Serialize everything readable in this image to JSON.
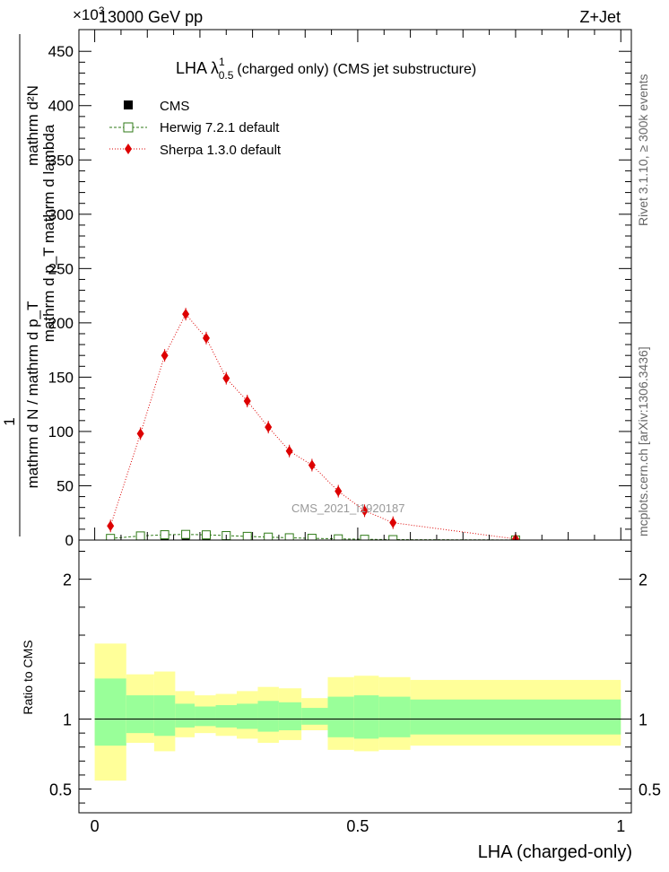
{
  "header": {
    "energy": "13000 GeV pp",
    "process": "Z+Jet",
    "exponent_label": "×10",
    "exponent_sup": "3"
  },
  "title": {
    "main": "LHA λ",
    "sup": "1",
    "sub": "0.5",
    "rest": "(charged only) (CMS jet substructure)"
  },
  "side_labels": {
    "rivet": "Rivet 3.1.10, ≥ 300k events",
    "mcplots": "mcplots.cern.ch [arXiv:1306.3436]"
  },
  "watermark": "CMS_2021_I1920187",
  "axes": {
    "ylabel_num": "mathrm d²N",
    "ylabel_den": "mathrm d p_T mathrm d lambda",
    "ylabel_outer_num": "1",
    "ylabel_outer_den": "mathrm d N / mathrm d p_T",
    "ratio_ylabel": "Ratio to CMS",
    "xlabel": "LHA (charged-only)"
  },
  "legend": [
    {
      "key": "cms",
      "label": "CMS"
    },
    {
      "key": "herwig",
      "label": "Herwig 7.2.1 default"
    },
    {
      "key": "sherpa",
      "label": "Sherpa 1.3.0 default"
    }
  ],
  "colors": {
    "sherpa": "#dd0000",
    "herwig": "#2f7a17",
    "band_inner": "#99ff99",
    "band_outer": "#ffff99",
    "data": "#000000"
  },
  "chart_data": [
    {
      "type": "scatter",
      "panel": "main",
      "xlim": [
        -0.03,
        1.02
      ],
      "ylim": [
        0,
        470
      ],
      "y_scale_factor": 1000,
      "yticks": [
        0,
        50,
        100,
        150,
        200,
        250,
        300,
        350,
        400,
        450
      ],
      "xticks": [
        0,
        0.5,
        1
      ],
      "series": [
        {
          "name": "CMS",
          "style": "square",
          "x": [
            0.03,
            0.087,
            0.133,
            0.173,
            0.212,
            0.25,
            0.29,
            0.33,
            0.37,
            0.413,
            0.463,
            0.513,
            0.567
          ],
          "y": [
            0.6,
            1.8,
            2.6,
            3.2,
            2.9,
            2.5,
            2.1,
            1.7,
            1.4,
            1.1,
            0.8,
            0.5,
            0.3
          ]
        },
        {
          "name": "Herwig 7.2.1 default",
          "style": "open-square",
          "x": [
            0.03,
            0.087,
            0.133,
            0.173,
            0.212,
            0.25,
            0.29,
            0.33,
            0.37,
            0.413,
            0.463,
            0.513,
            0.567,
            0.8
          ],
          "y": [
            1.5,
            3.8,
            4.9,
            5.2,
            4.8,
            4.1,
            3.4,
            2.7,
            2.1,
            1.6,
            1.1,
            0.7,
            0.4,
            0.1
          ]
        },
        {
          "name": "Sherpa 1.3.0 default",
          "style": "diamond",
          "x": [
            0.03,
            0.087,
            0.133,
            0.173,
            0.212,
            0.25,
            0.29,
            0.33,
            0.37,
            0.413,
            0.463,
            0.513,
            0.567,
            0.8
          ],
          "y": [
            13,
            98,
            170,
            208,
            186,
            149,
            128,
            104,
            82,
            69,
            45,
            27,
            16,
            1
          ]
        }
      ]
    },
    {
      "type": "area",
      "panel": "ratio",
      "xlim": [
        -0.03,
        1.02
      ],
      "ylim": [
        0.33,
        2.28
      ],
      "yticks": [
        0.5,
        1,
        2
      ],
      "xticks": [
        0,
        0.5,
        1
      ],
      "reference": 1,
      "bins": [
        {
          "x": [
            0.0,
            0.06
          ],
          "inner": [
            0.81,
            1.29
          ],
          "outer": [
            0.56,
            1.54
          ]
        },
        {
          "x": [
            0.06,
            0.113
          ],
          "inner": [
            0.9,
            1.17
          ],
          "outer": [
            0.83,
            1.32
          ]
        },
        {
          "x": [
            0.113,
            0.153
          ],
          "inner": [
            0.88,
            1.17
          ],
          "outer": [
            0.77,
            1.34
          ]
        },
        {
          "x": [
            0.153,
            0.19
          ],
          "inner": [
            0.94,
            1.11
          ],
          "outer": [
            0.87,
            1.2
          ]
        },
        {
          "x": [
            0.19,
            0.23
          ],
          "inner": [
            0.95,
            1.09
          ],
          "outer": [
            0.9,
            1.17
          ]
        },
        {
          "x": [
            0.23,
            0.27
          ],
          "inner": [
            0.94,
            1.1
          ],
          "outer": [
            0.88,
            1.18
          ]
        },
        {
          "x": [
            0.27,
            0.31
          ],
          "inner": [
            0.93,
            1.11
          ],
          "outer": [
            0.86,
            1.2
          ]
        },
        {
          "x": [
            0.31,
            0.35
          ],
          "inner": [
            0.91,
            1.13
          ],
          "outer": [
            0.83,
            1.23
          ]
        },
        {
          "x": [
            0.35,
            0.393
          ],
          "inner": [
            0.92,
            1.12
          ],
          "outer": [
            0.85,
            1.22
          ]
        },
        {
          "x": [
            0.393,
            0.443
          ],
          "inner": [
            0.96,
            1.08
          ],
          "outer": [
            0.92,
            1.15
          ]
        },
        {
          "x": [
            0.443,
            0.493
          ],
          "inner": [
            0.87,
            1.16
          ],
          "outer": [
            0.78,
            1.3
          ]
        },
        {
          "x": [
            0.493,
            0.54
          ],
          "inner": [
            0.86,
            1.17
          ],
          "outer": [
            0.77,
            1.31
          ]
        },
        {
          "x": [
            0.54,
            0.6
          ],
          "inner": [
            0.87,
            1.16
          ],
          "outer": [
            0.78,
            1.3
          ]
        },
        {
          "x": [
            0.6,
            1.0
          ],
          "inner": [
            0.89,
            1.14
          ],
          "outer": [
            0.81,
            1.28
          ]
        }
      ]
    }
  ]
}
